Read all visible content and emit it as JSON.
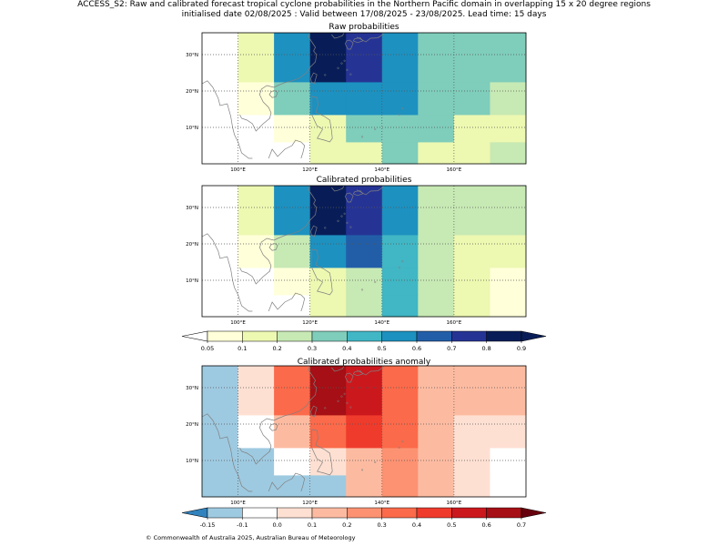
{
  "header": {
    "title_line1": "ACCESS_S2: Raw and calibrated forecast tropical cyclone probabilities in the Northern Pacific domain in overlapping 15 x 20 degree regions",
    "title_line2": "initialised date 02/08/2025 :  Valid between 17/08/2025 - 23/08/2025. Lead time: 15 days"
  },
  "footer": {
    "copyright": "© Commonwealth of Australia 2025, Australian Bureau of Meteorology"
  },
  "chart_data": [
    {
      "type": "heatmap",
      "title": "Raw probabilities",
      "lon_range": [
        90,
        180
      ],
      "lat_range": [
        0,
        36
      ],
      "x_ticks": [
        "100°E",
        "120°E",
        "140°E",
        "160°E"
      ],
      "y_ticks": [
        "10°N",
        "20°N",
        "30°N"
      ],
      "cell_lons": [
        90,
        100,
        110,
        120,
        130,
        140,
        150,
        160,
        170,
        180
      ],
      "cell_lats": [
        0,
        6,
        13.5,
        22.5,
        36
      ],
      "values": [
        [
          null,
          null,
          null,
          0.1,
          0.1,
          0.3,
          0.1,
          0.1,
          0.2
        ],
        [
          null,
          null,
          0.05,
          0.1,
          0.3,
          0.3,
          0.3,
          0.1,
          0.1
        ],
        [
          null,
          0.05,
          0.3,
          0.5,
          0.5,
          0.5,
          0.3,
          0.3,
          0.2
        ],
        [
          null,
          0.1,
          0.5,
          0.8,
          0.7,
          0.5,
          0.3,
          0.3,
          0.3
        ]
      ]
    },
    {
      "type": "heatmap",
      "title": "Calibrated probabilities",
      "lon_range": [
        90,
        180
      ],
      "lat_range": [
        0,
        36
      ],
      "x_ticks": [
        "100°E",
        "120°E",
        "140°E",
        "160°E"
      ],
      "y_ticks": [
        "10°N",
        "20°N",
        "30°N"
      ],
      "cell_lons": [
        90,
        100,
        110,
        120,
        130,
        140,
        150,
        160,
        170,
        180
      ],
      "cell_lats": [
        0,
        6,
        13.5,
        22.5,
        36
      ],
      "values": [
        [
          null,
          null,
          null,
          0.1,
          0.2,
          0.4,
          0.2,
          0.1,
          0.05
        ],
        [
          null,
          null,
          0.05,
          0.1,
          0.2,
          0.4,
          0.2,
          0.1,
          0.05
        ],
        [
          null,
          0.05,
          0.2,
          0.5,
          0.6,
          0.4,
          0.2,
          0.1,
          0.1
        ],
        [
          null,
          0.1,
          0.5,
          0.8,
          0.7,
          0.5,
          0.2,
          0.2,
          0.2
        ]
      ]
    },
    {
      "type": "heatmap",
      "title": "Calibrated probabilities anomaly",
      "lon_range": [
        90,
        180
      ],
      "lat_range": [
        0,
        36
      ],
      "x_ticks": [
        "100°E",
        "120°E",
        "140°E",
        "160°E"
      ],
      "y_ticks": [
        "10°N",
        "20°N",
        "30°N"
      ],
      "cell_lons": [
        90,
        100,
        110,
        120,
        130,
        140,
        150,
        160,
        170,
        180
      ],
      "cell_lats": [
        0,
        6,
        13.5,
        22.5,
        36
      ],
      "values": [
        [
          -0.15,
          -0.15,
          -0.15,
          -0.15,
          0.1,
          0.2,
          0.1,
          0.0,
          -0.1
        ],
        [
          -0.15,
          -0.15,
          -0.1,
          0.0,
          0.1,
          0.2,
          0.1,
          0.0,
          -0.1
        ],
        [
          -0.15,
          -0.1,
          0.1,
          0.3,
          0.4,
          0.3,
          0.1,
          0.0,
          0.0
        ],
        [
          -0.15,
          0.0,
          0.3,
          0.6,
          0.5,
          0.3,
          0.1,
          0.1,
          0.1
        ]
      ]
    }
  ],
  "colorbars": [
    {
      "tick_labels": [
        "0.05",
        "0.1",
        "0.2",
        "0.3",
        "0.4",
        "0.5",
        "0.6",
        "0.7",
        "0.8",
        "0.9"
      ],
      "levels": [
        0.05,
        0.1,
        0.2,
        0.3,
        0.4,
        0.5,
        0.6,
        0.7,
        0.8,
        0.9
      ],
      "colors": [
        "#ffffd9",
        "#edf8b1",
        "#c7e9b4",
        "#7fcdbb",
        "#41b6c4",
        "#1d91c0",
        "#225ea8",
        "#253494",
        "#081d58"
      ],
      "under_color": "#ffffff",
      "over_color": "#081d58"
    },
    {
      "tick_labels": [
        "-0.15",
        "-0.1",
        "0.0",
        "0.1",
        "0.2",
        "0.3",
        "0.4",
        "0.5",
        "0.6",
        "0.7"
      ],
      "levels": [
        -0.15,
        -0.1,
        0.0,
        0.1,
        0.2,
        0.3,
        0.4,
        0.5,
        0.6,
        0.7
      ],
      "colors": [
        "#9ecae1",
        "#ffffff",
        "#fee0d2",
        "#fcbba1",
        "#fc9272",
        "#fb6a4a",
        "#ef3b2c",
        "#cb181d",
        "#a50f15"
      ],
      "under_color": "#3182bd",
      "over_color": "#67000d"
    }
  ]
}
